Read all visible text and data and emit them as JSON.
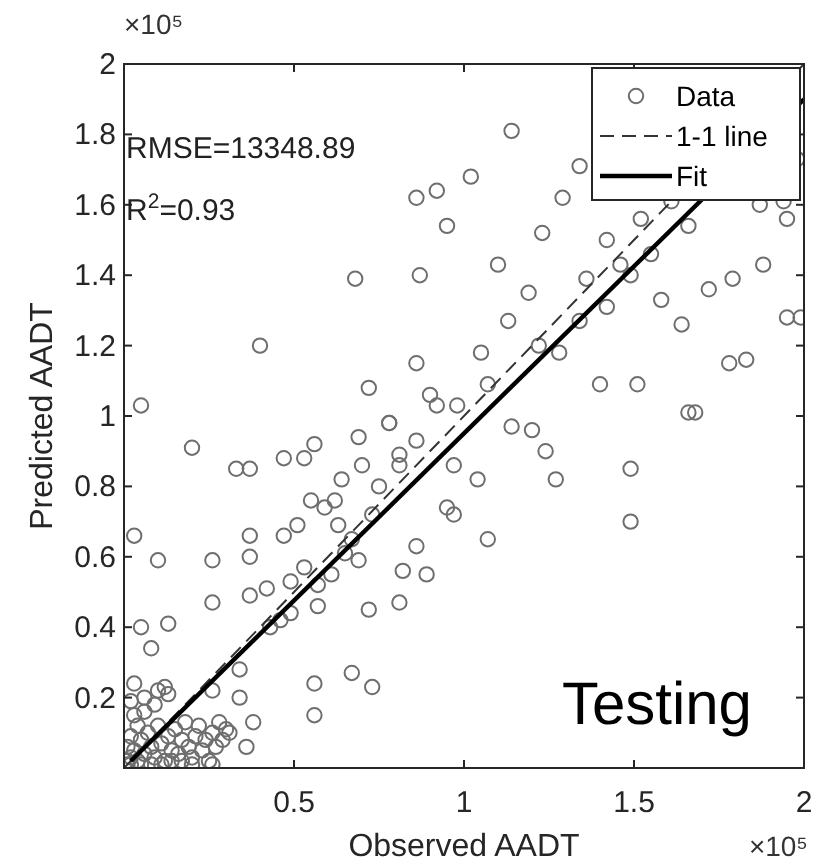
{
  "chart_data": {
    "type": "scatter",
    "xlabel": "Observed AADT",
    "ylabel": "Predicted AADT",
    "annotations": [
      "×10⁵",
      "RMSE=13348.89",
      "R$^{2}$=0.93",
      "Testing",
      "×10⁵"
    ],
    "xlim": [
      0,
      2
    ],
    "ylim": [
      0,
      2
    ],
    "xticks": [
      0.5,
      1,
      1.5,
      2
    ],
    "yticks": [
      0.2,
      0.4,
      0.6,
      0.8,
      1,
      1.2,
      1.4,
      1.6,
      1.8,
      2
    ],
    "grid": false,
    "legend": "top right",
    "series": [
      {
        "name": "Data",
        "marker": "circle",
        "color": "#6e6e6e",
        "x": [
          1.14,
          0.05,
          0.4,
          0.68,
          0.86,
          0.92,
          1.02,
          1.34,
          1.29,
          0.95,
          1.95,
          1.99,
          1.95,
          1.66,
          1.78,
          1.83,
          1.72,
          1.79,
          0.72,
          0.78,
          0.87,
          0.86,
          0.9,
          1.1,
          1.23,
          1.19,
          1.64,
          1.88,
          1.94,
          1.87,
          1.05,
          1.55,
          1.49,
          1.4,
          1.51,
          1.13,
          1.22,
          1.34,
          1.36,
          1.46,
          1.52,
          1.61,
          1.66,
          1.42,
          1.28,
          1.07,
          0.98,
          1.42,
          1.58,
          1.98,
          0.2,
          0.03,
          0.1,
          0.05,
          0.13,
          0.08,
          0.03,
          0.12,
          0.26,
          0.26,
          0.26,
          0.34,
          0.34,
          0.38,
          0.31,
          0.36,
          0.33,
          0.37,
          0.37,
          0.37,
          0.37,
          0.42,
          0.46,
          0.47,
          0.56,
          0.56,
          0.56,
          0.67,
          0.73,
          0.72,
          0.81,
          0.69,
          0.78,
          0.81,
          0.86,
          0.89,
          0.82,
          0.95,
          0.97,
          0.97,
          1.07,
          1.04,
          1.27,
          1.24,
          1.14,
          1.2,
          1.49,
          1.49,
          1.68,
          0.92,
          0.47,
          0.51,
          0.55,
          0.59,
          0.63,
          0.65,
          0.69,
          0.53,
          0.57,
          0.49,
          0.61,
          0.67,
          0.73,
          0.75,
          0.81,
          0.86,
          0.57,
          0.49,
          0.43,
          0.53,
          0.64,
          0.7,
          0.62,
          0.01,
          0.02,
          0.03,
          0.04,
          0.05,
          0.06,
          0.07,
          0.08,
          0.09,
          0.1,
          0.11,
          0.12,
          0.13,
          0.14,
          0.15,
          0.16,
          0.17,
          0.18,
          0.19,
          0.2,
          0.21,
          0.22,
          0.23,
          0.24,
          0.25,
          0.26,
          0.27,
          0.28,
          0.29,
          0.3,
          0.03,
          0.06,
          0.09,
          0.04,
          0.02,
          0.01,
          0.01,
          0.02,
          0.05,
          0.08,
          0.11,
          0.14,
          0.17,
          0.2,
          0.26,
          0.06,
          0.02,
          0.1,
          0.13
        ],
        "values": [
          1.81,
          1.03,
          1.2,
          1.39,
          1.62,
          1.64,
          1.68,
          1.71,
          1.62,
          1.54,
          1.56,
          1.28,
          1.28,
          1.01,
          1.15,
          1.16,
          1.36,
          1.39,
          1.08,
          0.98,
          1.4,
          1.15,
          1.06,
          1.43,
          1.52,
          1.35,
          1.26,
          1.43,
          1.61,
          1.6,
          1.18,
          1.46,
          1.4,
          1.09,
          1.09,
          1.27,
          1.2,
          1.27,
          1.39,
          1.43,
          1.56,
          1.61,
          1.54,
          1.5,
          1.18,
          1.09,
          1.03,
          1.31,
          1.33,
          1.73,
          0.91,
          0.66,
          0.59,
          0.4,
          0.41,
          0.34,
          0.24,
          0.23,
          0.47,
          0.59,
          0.22,
          0.28,
          0.2,
          0.13,
          0.1,
          0.06,
          0.85,
          0.85,
          0.6,
          0.66,
          0.49,
          0.51,
          0.42,
          0.88,
          0.92,
          0.24,
          0.15,
          0.27,
          0.23,
          0.45,
          0.47,
          0.94,
          0.98,
          0.89,
          0.93,
          0.55,
          0.56,
          0.74,
          0.86,
          0.72,
          0.65,
          0.82,
          0.82,
          0.9,
          0.97,
          0.96,
          0.85,
          0.7,
          1.01,
          1.03,
          0.66,
          0.69,
          0.76,
          0.74,
          0.69,
          0.61,
          0.59,
          0.57,
          0.52,
          0.53,
          0.55,
          0.65,
          0.72,
          0.8,
          0.86,
          0.63,
          0.46,
          0.44,
          0.4,
          0.88,
          0.82,
          0.86,
          0.76,
          0.01,
          0.03,
          0.05,
          0.02,
          0.08,
          0.04,
          0.1,
          0.06,
          0.03,
          0.12,
          0.07,
          0.02,
          0.09,
          0.05,
          0.11,
          0.04,
          0.08,
          0.13,
          0.06,
          0.03,
          0.09,
          0.12,
          0.05,
          0.08,
          0.02,
          0.1,
          0.06,
          0.13,
          0.08,
          0.11,
          0.15,
          0.16,
          0.18,
          0.12,
          0.09,
          0.06,
          0.02,
          0.01,
          0.01,
          0.01,
          0.01,
          0.02,
          0.02,
          0.01,
          0.01,
          0.2,
          0.19,
          0.22,
          0.21
        ]
      },
      {
        "name": "1-1 line",
        "type": "line",
        "line_style": "dashed",
        "marker": "none",
        "color": "#333333",
        "x": [
          0,
          2
        ],
        "values": [
          0,
          2
        ]
      },
      {
        "name": "Fit",
        "type": "line",
        "line_style": "solid",
        "marker": "none",
        "color": "#000000",
        "x": [
          0.02,
          2
        ],
        "values": [
          0.02,
          1.9
        ]
      }
    ]
  }
}
